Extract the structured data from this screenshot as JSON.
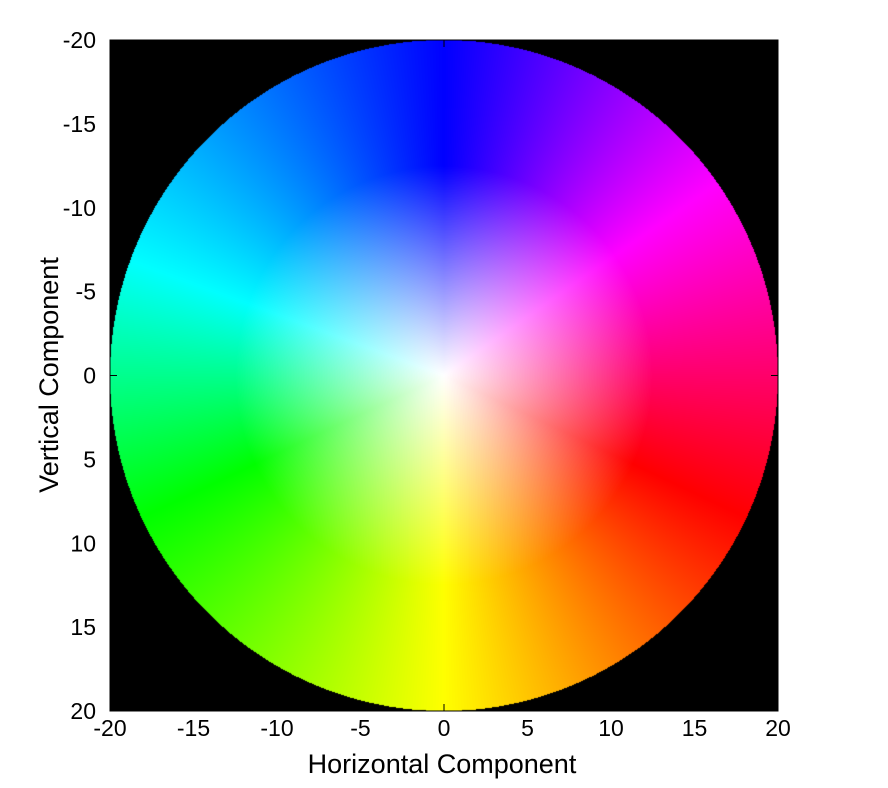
{
  "chart_data": {
    "type": "heatmap",
    "description_kind": "hue-saturation color wheel over a circular disk on black background",
    "title": "",
    "xlabel": "Horizontal Component",
    "ylabel": "Vertical Component",
    "xlim": [
      -20,
      20
    ],
    "ylim": [
      -20,
      20
    ],
    "y_direction": "reversed",
    "x_ticks": [
      -20,
      -15,
      -10,
      -5,
      0,
      5,
      10,
      15,
      20
    ],
    "y_ticks": [
      -20,
      -15,
      -10,
      -5,
      0,
      5,
      10,
      15,
      20
    ],
    "x_tick_labels": [
      "-20",
      "-15",
      "-10",
      "-5",
      "0",
      "5",
      "10",
      "15",
      "20"
    ],
    "y_tick_labels": [
      "-20",
      "-15",
      "-10",
      "-5",
      "0",
      "5",
      "10",
      "15",
      "20"
    ],
    "disk_radius": 20,
    "grid": false,
    "background_color": "#000000",
    "center_color": "#ffffff",
    "hue_stops": [
      {
        "direction": "up (y=-20)",
        "color": "#0000ff"
      },
      {
        "direction": "upper-right",
        "color": "#ff00ff"
      },
      {
        "direction": "right-lower (x=18,y=8)",
        "color": "#ff0000"
      },
      {
        "direction": "down (y=20)",
        "color": "#ffff00"
      },
      {
        "direction": "lower-left",
        "color": "#00ff00"
      },
      {
        "direction": "left-upper",
        "color": "#00ffff"
      }
    ]
  }
}
